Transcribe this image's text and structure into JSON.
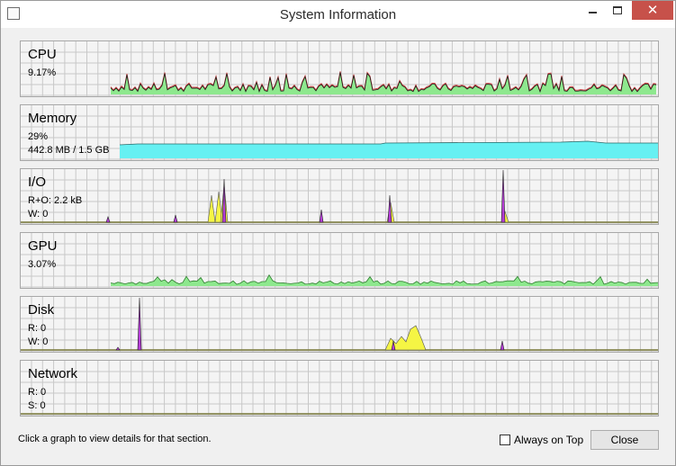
{
  "window": {
    "title": "System Information"
  },
  "colors": {
    "grid": "#c8c8c8",
    "panel_bg": "#f4f4f4",
    "panel_border": "#a8a8a8",
    "cpu_fill": "#8ee88e",
    "cpu_peak": "#d44545",
    "mem_fill": "#66f0f2",
    "io_read": "#f5f544",
    "io_write": "#b53dd6",
    "gpu_fill": "#8ee88e",
    "baseline": "#7a7a3a",
    "close_bg": "#c7514a"
  },
  "icons": {
    "app": "window-icon",
    "minimize": "minimize-icon",
    "maximize": "maximize-icon",
    "close": "close-icon"
  },
  "panels": [
    {
      "key": "cpu",
      "name": "CPU",
      "line1": "9.17%",
      "line2": ""
    },
    {
      "key": "memory",
      "name": "Memory",
      "line1": "29%",
      "line2": "442.8 MB / 1.5 GB"
    },
    {
      "key": "io",
      "name": "I/O",
      "line1": "R+O: 2.2 kB",
      "line2": "W: 0"
    },
    {
      "key": "gpu",
      "name": "GPU",
      "line1": "3.07%",
      "line2": ""
    },
    {
      "key": "disk",
      "name": "Disk",
      "line1": "R: 0",
      "line2": "W: 0"
    },
    {
      "key": "network",
      "name": "Network",
      "line1": "R: 0",
      "line2": "S: 0"
    }
  ],
  "footer": {
    "status": "Click a graph to view details for that section.",
    "always_on_top": "Always on Top",
    "always_on_top_checked": false,
    "close": "Close"
  }
}
